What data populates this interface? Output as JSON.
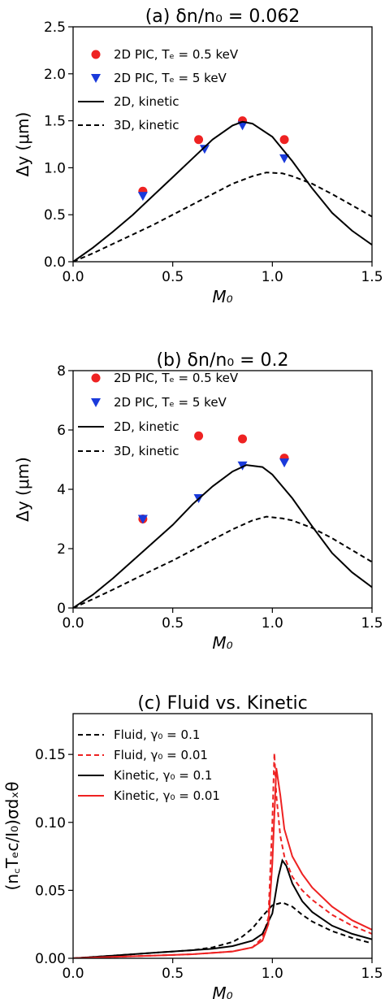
{
  "chart_data": [
    {
      "type": "scatter",
      "title": "(a) δn/n₀ = 0.062",
      "xlabel": "M₀",
      "ylabel": "Δy (μm)",
      "xlim": [
        0,
        1.5
      ],
      "ylim": [
        0,
        2.5
      ],
      "xticks": [
        "0.0",
        "0.5",
        "1.0",
        "1.5"
      ],
      "yticks": [
        "0.0",
        "0.5",
        "1.0",
        "1.5",
        "2.0",
        "2.5"
      ],
      "legend_position": "top-left",
      "series": [
        {
          "name": "2D PIC, Tₑ = 0.5 keV",
          "kind": "circle",
          "color": "#ee2222",
          "x": [
            0.35,
            0.63,
            0.85,
            1.06
          ],
          "y": [
            0.75,
            1.3,
            1.5,
            1.3
          ]
        },
        {
          "name": "2D PIC, Tₑ = 5 keV",
          "kind": "triangle",
          "color": "#1a3adb",
          "x": [
            0.35,
            0.66,
            0.85,
            1.06
          ],
          "y": [
            0.7,
            1.2,
            1.45,
            1.1
          ]
        },
        {
          "name": "2D, kinetic",
          "kind": "line",
          "color": "#000000",
          "x": [
            0,
            0.1,
            0.2,
            0.3,
            0.4,
            0.5,
            0.6,
            0.7,
            0.8,
            0.85,
            0.9,
            1.0,
            1.1,
            1.2,
            1.3,
            1.4,
            1.5
          ],
          "y": [
            0,
            0.15,
            0.32,
            0.5,
            0.7,
            0.9,
            1.1,
            1.3,
            1.45,
            1.49,
            1.47,
            1.33,
            1.07,
            0.78,
            0.52,
            0.33,
            0.18
          ]
        },
        {
          "name": "3D, kinetic",
          "kind": "dashed",
          "color": "#000000",
          "x": [
            0,
            0.1,
            0.2,
            0.3,
            0.4,
            0.5,
            0.6,
            0.7,
            0.8,
            0.9,
            0.97,
            1.05,
            1.1,
            1.2,
            1.3,
            1.4,
            1.5
          ],
          "y": [
            0,
            0.09,
            0.19,
            0.29,
            0.39,
            0.5,
            0.61,
            0.72,
            0.83,
            0.91,
            0.95,
            0.94,
            0.91,
            0.83,
            0.72,
            0.6,
            0.48
          ]
        }
      ]
    },
    {
      "type": "scatter",
      "title": "(b) δn/n₀ = 0.2",
      "xlabel": "M₀",
      "ylabel": "Δy (μm)",
      "xlim": [
        0,
        1.5
      ],
      "ylim": [
        0,
        8
      ],
      "xticks": [
        "0.0",
        "0.5",
        "1.0",
        "1.5"
      ],
      "yticks": [
        "0",
        "2",
        "4",
        "6",
        "8"
      ],
      "legend_position": "top-left",
      "series": [
        {
          "name": "2D PIC, Tₑ = 0.5 keV",
          "kind": "circle",
          "color": "#ee2222",
          "x": [
            0.35,
            0.63,
            0.85,
            1.06
          ],
          "y": [
            3.0,
            5.8,
            5.7,
            5.05
          ]
        },
        {
          "name": "2D PIC, Tₑ = 5 keV",
          "kind": "triangle",
          "color": "#1a3adb",
          "x": [
            0.35,
            0.63,
            0.85,
            1.06
          ],
          "y": [
            3.0,
            3.7,
            4.8,
            4.9
          ]
        },
        {
          "name": "2D, kinetic",
          "kind": "line",
          "color": "#000000",
          "x": [
            0,
            0.1,
            0.2,
            0.3,
            0.4,
            0.5,
            0.6,
            0.7,
            0.8,
            0.87,
            0.95,
            1.0,
            1.1,
            1.2,
            1.3,
            1.4,
            1.5
          ],
          "y": [
            0,
            0.45,
            1.0,
            1.6,
            2.2,
            2.8,
            3.5,
            4.1,
            4.6,
            4.82,
            4.75,
            4.5,
            3.7,
            2.75,
            1.85,
            1.2,
            0.7
          ]
        },
        {
          "name": "3D, kinetic",
          "kind": "dashed",
          "color": "#000000",
          "x": [
            0,
            0.1,
            0.2,
            0.3,
            0.4,
            0.5,
            0.6,
            0.7,
            0.8,
            0.9,
            0.97,
            1.05,
            1.1,
            1.2,
            1.3,
            1.4,
            1.5
          ],
          "y": [
            0,
            0.3,
            0.62,
            0.95,
            1.28,
            1.6,
            1.95,
            2.3,
            2.65,
            2.95,
            3.08,
            3.02,
            2.95,
            2.7,
            2.35,
            1.95,
            1.55
          ]
        }
      ]
    },
    {
      "type": "line",
      "title": "(c) Fluid vs. Kinetic",
      "xlabel": "M₀",
      "ylabel": "(n꜀Tₑc/I₀)σdₓθ",
      "xlim": [
        0,
        1.5
      ],
      "ylim": [
        0,
        0.18
      ],
      "xticks": [
        "0.0",
        "0.5",
        "1.0",
        "1.5"
      ],
      "yticks": [
        "0.00",
        "0.05",
        "0.10",
        "0.15"
      ],
      "legend_position": "top-left",
      "series": [
        {
          "name": "Fluid, γ₀ = 0.1",
          "kind": "dashed",
          "color": "#000000",
          "x": [
            0,
            0.2,
            0.4,
            0.6,
            0.7,
            0.8,
            0.85,
            0.9,
            0.95,
            1.0,
            1.05,
            1.1,
            1.15,
            1.2,
            1.3,
            1.4,
            1.5
          ],
          "y": [
            0,
            0.002,
            0.004,
            0.006,
            0.008,
            0.012,
            0.016,
            0.022,
            0.031,
            0.039,
            0.041,
            0.038,
            0.032,
            0.027,
            0.02,
            0.015,
            0.011
          ]
        },
        {
          "name": "Fluid, γ₀ = 0.01",
          "kind": "dashed",
          "color": "#ee2222",
          "x": [
            0,
            0.2,
            0.4,
            0.6,
            0.8,
            0.9,
            0.95,
            0.98,
            1.0,
            1.01,
            1.02,
            1.04,
            1.06,
            1.1,
            1.15,
            1.2,
            1.3,
            1.4,
            1.5
          ],
          "y": [
            0,
            0.001,
            0.002,
            0.003,
            0.005,
            0.008,
            0.015,
            0.03,
            0.1,
            0.151,
            0.12,
            0.09,
            0.075,
            0.06,
            0.05,
            0.043,
            0.032,
            0.024,
            0.018
          ]
        },
        {
          "name": "Kinetic, γ₀ = 0.1",
          "kind": "line",
          "color": "#000000",
          "x": [
            0,
            0.2,
            0.4,
            0.6,
            0.7,
            0.8,
            0.9,
            0.95,
            1.0,
            1.03,
            1.05,
            1.07,
            1.1,
            1.15,
            1.2,
            1.3,
            1.4,
            1.5
          ],
          "y": [
            0,
            0.002,
            0.004,
            0.006,
            0.007,
            0.009,
            0.013,
            0.018,
            0.033,
            0.06,
            0.072,
            0.068,
            0.055,
            0.042,
            0.034,
            0.024,
            0.018,
            0.014
          ]
        },
        {
          "name": "Kinetic, γ₀ = 0.01",
          "kind": "line",
          "color": "#ee2222",
          "x": [
            0,
            0.2,
            0.4,
            0.6,
            0.8,
            0.9,
            0.95,
            0.98,
            1.0,
            1.02,
            1.04,
            1.06,
            1.1,
            1.15,
            1.2,
            1.3,
            1.4,
            1.5
          ],
          "y": [
            0,
            0.001,
            0.002,
            0.003,
            0.005,
            0.008,
            0.013,
            0.025,
            0.07,
            0.14,
            0.12,
            0.095,
            0.075,
            0.062,
            0.052,
            0.038,
            0.028,
            0.021
          ]
        }
      ]
    }
  ]
}
